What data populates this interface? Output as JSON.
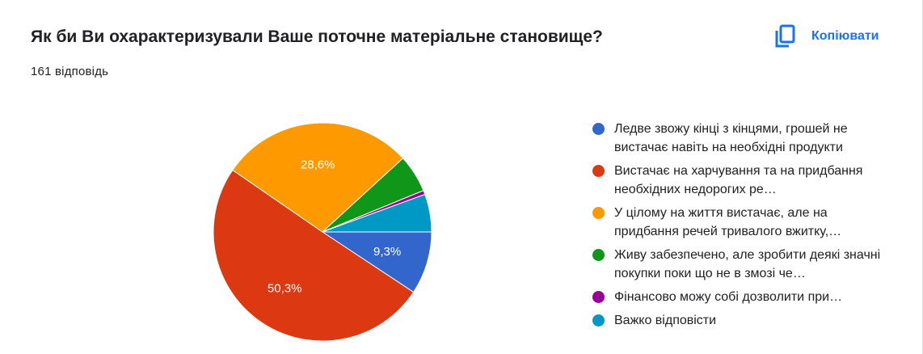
{
  "header": {
    "title": "Як би Ви охарактеризували Ваше поточне матеріальне становище?",
    "response_count": "161 відповідь",
    "copy_label": "Копіювати"
  },
  "colors": {
    "accent": "#1a73e8"
  },
  "chart_data": {
    "type": "pie",
    "categories": [
      "Ледве звожу кінці з кінцями, грошей не вистачає навіть на необхідні продукти",
      "Вистачає на харчування та на придбання необхідних недорогих ре…",
      "У цілому на життя вистачає, але на придбання речей тривалого вжитку,…",
      "Живу забезпечено, але зробити деякі значні покупки поки що не в змозі че…",
      "Фінансово можу собі дозволити при…",
      "Важко відповісти"
    ],
    "values": [
      9.3,
      50.3,
      28.6,
      5.6,
      0.6,
      5.6
    ],
    "data_labels": [
      "9,3%",
      "50,3%",
      "28,6%",
      "",
      "",
      ""
    ],
    "colors": [
      "#3366cc",
      "#dc3912",
      "#ff9900",
      "#109618",
      "#990099",
      "#0099c6"
    ],
    "legend_position": "right"
  }
}
